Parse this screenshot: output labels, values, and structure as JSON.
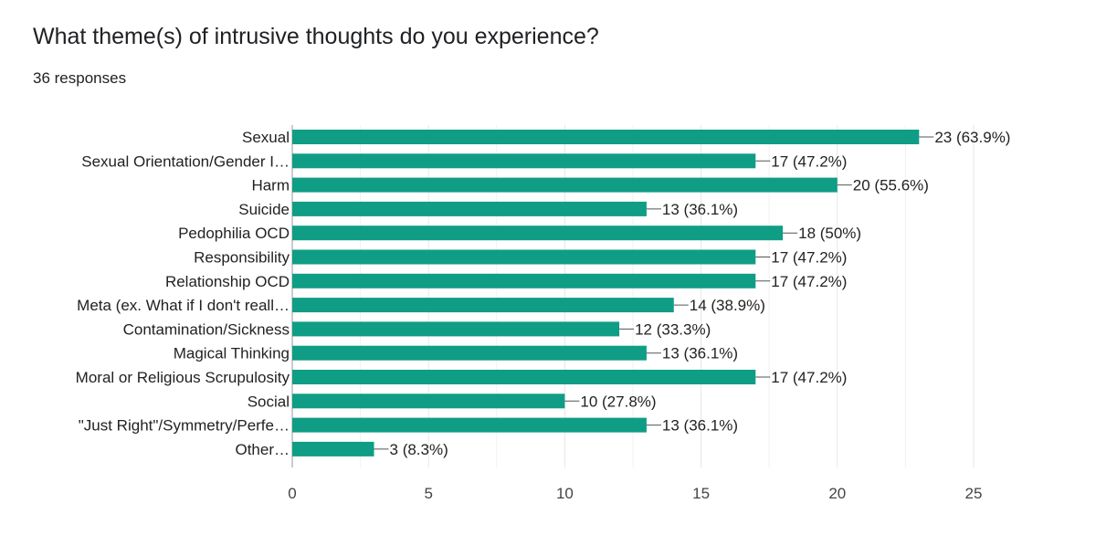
{
  "question": {
    "title": "What theme(s) of intrusive thoughts do you experience?",
    "responses": "36 responses"
  },
  "colors": {
    "bar": "#0f9d85",
    "grid": "#e6e6e6",
    "axis": "#999999",
    "text": "#222222"
  },
  "chart_data": {
    "type": "bar",
    "orientation": "horizontal",
    "title": "",
    "xlabel": "",
    "ylabel": "",
    "categories": [
      "Sexual",
      "Sexual Orientation/Gender I…",
      "Harm",
      "Suicide",
      "Pedophilia OCD",
      "Responsibility",
      "Relationship OCD",
      "Meta (ex. What if I don't reall…",
      "Contamination/Sickness",
      "Magical Thinking",
      "Moral or Religious Scrupulosity",
      "Social",
      "\"Just Right\"/Symmetry/Perfe…",
      "Other…"
    ],
    "values": [
      23,
      17,
      20,
      13,
      18,
      17,
      17,
      14,
      12,
      13,
      17,
      10,
      13,
      3
    ],
    "value_labels": [
      "23 (63.9%)",
      "17 (47.2%)",
      "20 (55.6%)",
      "13 (36.1%)",
      "18 (50%)",
      "17 (47.2%)",
      "17 (47.2%)",
      "14 (38.9%)",
      "12 (33.3%)",
      "13 (36.1%)",
      "17 (47.2%)",
      "10 (27.8%)",
      "13 (36.1%)",
      "3 (8.3%)"
    ],
    "xlim": [
      0,
      25
    ],
    "xticks": [
      0,
      5,
      10,
      15,
      20,
      25
    ],
    "grid": true,
    "legend": "none"
  }
}
